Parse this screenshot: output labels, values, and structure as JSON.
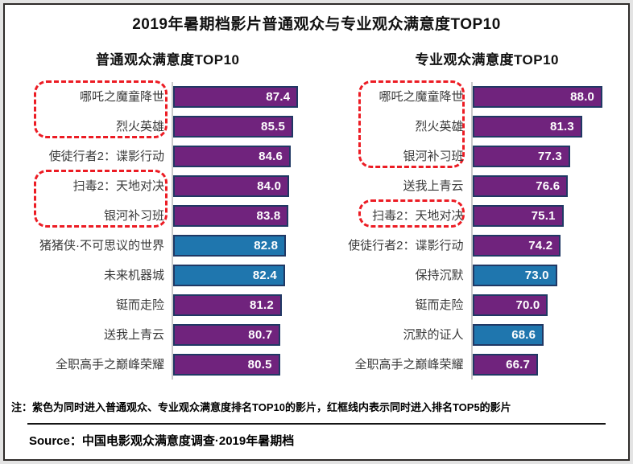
{
  "title": "2019年暑期档影片普通观众与专业观众满意度TOP10",
  "note": "注：紫色为同时进入普通观众、专业观众满意度排名TOP10的影片，红框线内表示同时进入排名TOP5的影片",
  "source": "Source：中国电影观众满意度调查·2019年暑期档",
  "colors": {
    "purple": "#70237d",
    "blue": "#1f76ae",
    "bar_border": "#203864",
    "highlight_red": "#ec1c24",
    "axis_gray": "#c9c9c9"
  },
  "chart_data": [
    {
      "type": "bar",
      "orientation": "horizontal",
      "title": "普通观众满意度TOP10",
      "xlim": [
        40,
        89
      ],
      "grid": false,
      "items": [
        {
          "label": "哪吒之魔童降世",
          "value": 87.4,
          "display": "87.4",
          "color": "purple"
        },
        {
          "label": "烈火英雄",
          "value": 85.5,
          "display": "85.5",
          "color": "purple"
        },
        {
          "label": "使徒行者2：谍影行动",
          "value": 84.6,
          "display": "84.6",
          "color": "purple"
        },
        {
          "label": "扫毒2：天地对决",
          "value": 84.0,
          "display": "84.0",
          "color": "purple"
        },
        {
          "label": "银河补习班",
          "value": 83.8,
          "display": "83.8",
          "color": "purple"
        },
        {
          "label": "猪猪侠·不可思议的世界",
          "value": 82.8,
          "display": "82.8",
          "color": "blue"
        },
        {
          "label": "未来机器城",
          "value": 82.4,
          "display": "82.4",
          "color": "blue"
        },
        {
          "label": "铤而走险",
          "value": 81.2,
          "display": "81.2",
          "color": "purple"
        },
        {
          "label": "送我上青云",
          "value": 80.7,
          "display": "80.7",
          "color": "purple"
        },
        {
          "label": "全职高手之巅峰荣耀",
          "value": 80.5,
          "display": "80.5",
          "color": "purple"
        }
      ],
      "highlight_boxes": [
        {
          "start_row": 0,
          "end_row": 1
        },
        {
          "start_row": 3,
          "end_row": 4
        }
      ]
    },
    {
      "type": "bar",
      "orientation": "horizontal",
      "title": "专业观众满意度TOP10",
      "xlim": [
        45,
        88.5
      ],
      "grid": false,
      "items": [
        {
          "label": "哪吒之魔童降世",
          "value": 88.0,
          "display": "88.0",
          "color": "purple"
        },
        {
          "label": "烈火英雄",
          "value": 81.3,
          "display": "81.3",
          "color": "purple"
        },
        {
          "label": "银河补习班",
          "value": 77.3,
          "display": "77.3",
          "color": "purple"
        },
        {
          "label": "送我上青云",
          "value": 76.6,
          "display": "76.6",
          "color": "purple"
        },
        {
          "label": "扫毒2：天地对决",
          "value": 75.1,
          "display": "75.1",
          "color": "purple"
        },
        {
          "label": "使徒行者2：谍影行动",
          "value": 74.2,
          "display": "74.2",
          "color": "purple"
        },
        {
          "label": "保持沉默",
          "value": 73.0,
          "display": "73.0",
          "color": "blue"
        },
        {
          "label": "铤而走险",
          "value": 70.0,
          "display": "70.0",
          "color": "purple"
        },
        {
          "label": "沉默的证人",
          "value": 68.6,
          "display": "68.6",
          "color": "blue"
        },
        {
          "label": "全职高手之巅峰荣耀",
          "value": 66.7,
          "display": "66.7",
          "color": "purple"
        }
      ],
      "highlight_boxes": [
        {
          "start_row": 0,
          "end_row": 2
        },
        {
          "start_row": 4,
          "end_row": 4
        }
      ]
    }
  ]
}
